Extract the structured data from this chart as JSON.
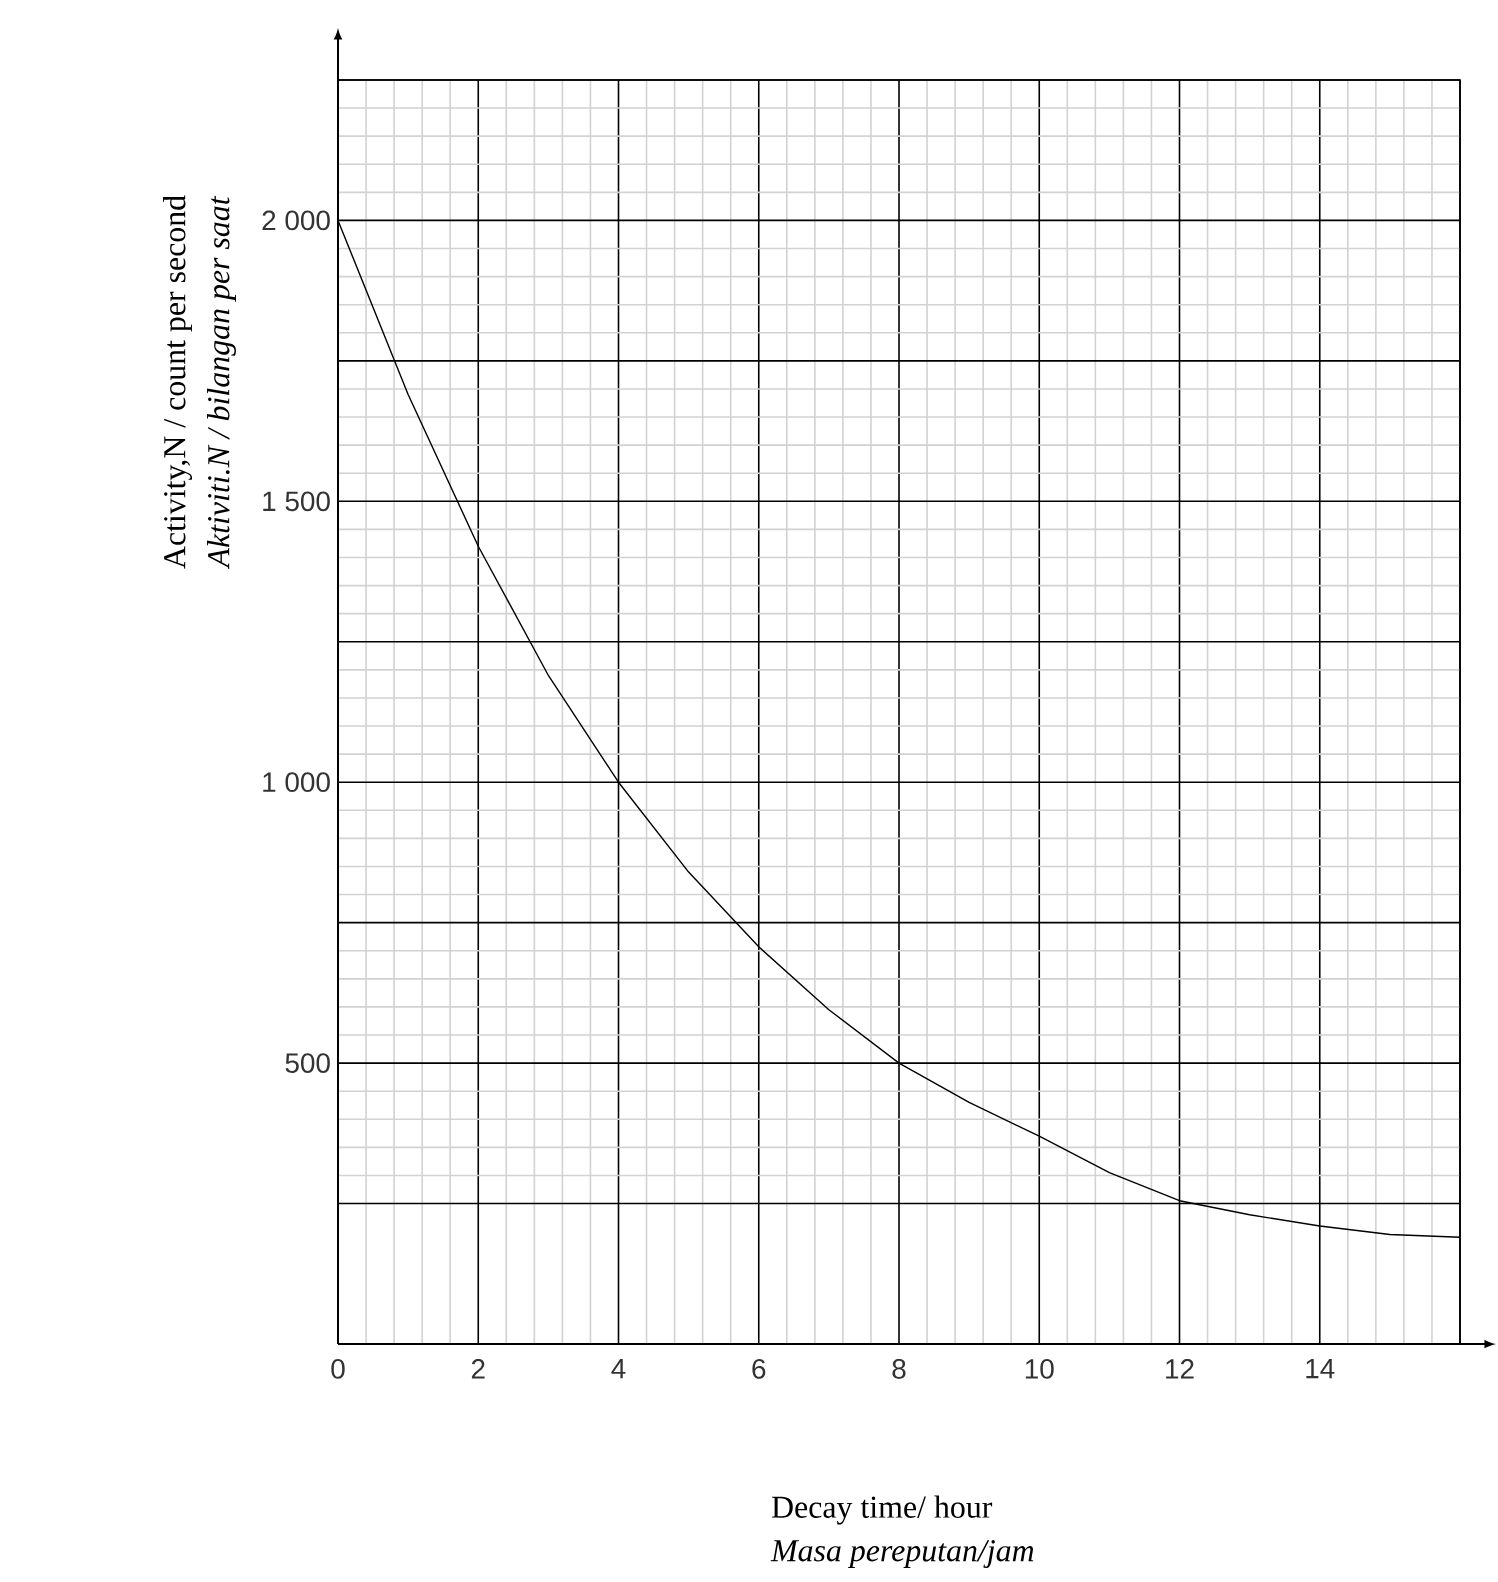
{
  "chart_data": {
    "type": "line",
    "xlabel": "Decay time/ hour",
    "ylabel": "Activity,N / count per second",
    "annotations": [
      "Aktiviti.N / bilangan per saat",
      "Masa pereputan/jam"
    ],
    "x": [
      0,
      1,
      2,
      3,
      4,
      5,
      6,
      7,
      8,
      9,
      10,
      11,
      12,
      13,
      14,
      15,
      16
    ],
    "series": [
      {
        "color": "#000000",
        "values": [
          2000,
          1690,
          1420,
          1190,
          1000,
          840,
          707,
          595,
          500,
          430,
          370,
          305,
          255,
          230,
          210,
          195,
          190
        ]
      }
    ],
    "xlim": [
      0,
      16
    ],
    "ylim": [
      0,
      2250
    ],
    "xticks": [
      0,
      2,
      4,
      6,
      8,
      10,
      12,
      14,
      {
        "value": 16,
        "label": null
      }
    ],
    "yticks": [
      {
        "value": 250,
        "label": null
      },
      500,
      {
        "value": 750,
        "label": null
      },
      {
        "value": 1000,
        "label": "1 000"
      },
      {
        "value": 1250,
        "label": null
      },
      {
        "value": 1500,
        "label": "1 500"
      },
      {
        "value": 1750,
        "label": null
      },
      {
        "value": 2000,
        "label": "2 000"
      },
      {
        "value": 2250,
        "label": null
      }
    ],
    "grid": true,
    "marker": "none",
    "line_style": "solid"
  }
}
